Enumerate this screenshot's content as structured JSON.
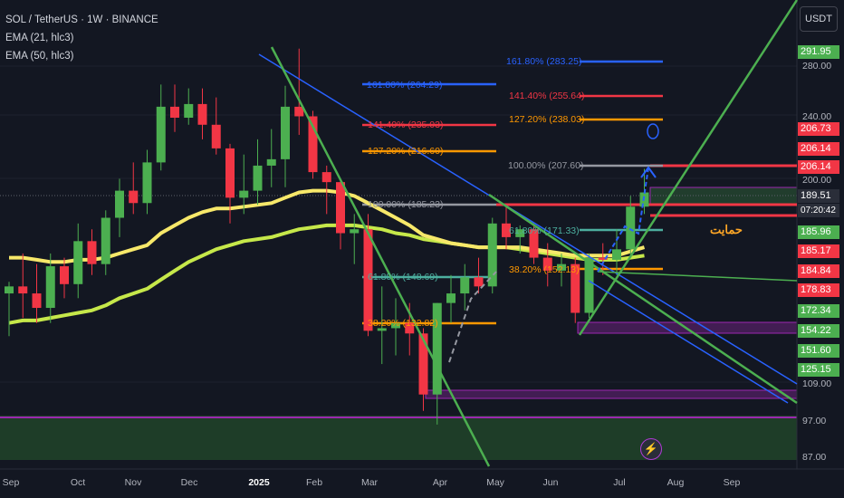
{
  "legend": {
    "symbol": "SOL / TetherUS · 1W · BINANCE",
    "ema21": "EMA (21, hlc3)",
    "ema50": "EMA (50, hlc3)"
  },
  "currency": "USDT",
  "price_axis_labels": [
    "280.00",
    "240.00",
    "200.00",
    "109.00",
    "97.00",
    "87.00"
  ],
  "price_tags": [
    {
      "text": "291.95",
      "color": "#4caf50"
    },
    {
      "text": "206.73",
      "color": "#f23645"
    },
    {
      "text": "206.14",
      "color": "#f23645"
    },
    {
      "text": "206.14",
      "color": "#f23645"
    },
    {
      "text": "189.51",
      "color": "#2a2e39"
    },
    {
      "text": "07:20:42",
      "color": "#2a2e39"
    },
    {
      "text": "185.96",
      "color": "#4caf50"
    },
    {
      "text": "185.17",
      "color": "#f23645"
    },
    {
      "text": "184.84",
      "color": "#f23645"
    },
    {
      "text": "178.83",
      "color": "#f23645"
    },
    {
      "text": "172.34",
      "color": "#4caf50"
    },
    {
      "text": "154.22",
      "color": "#4caf50"
    },
    {
      "text": "151.60",
      "color": "#4caf50"
    },
    {
      "text": "125.15",
      "color": "#4caf50"
    }
  ],
  "months": [
    "Sep",
    "Oct",
    "Nov",
    "Dec",
    "2025",
    "Feb",
    "Mar",
    "Apr",
    "May",
    "Jun",
    "Jul",
    "Aug",
    "Sep"
  ],
  "fib_labels": [
    {
      "text": "161.80% (283.25)",
      "color": "#2962ff"
    },
    {
      "text": "161.80% (264.29)",
      "color": "#2962ff"
    },
    {
      "text": "141.40% (255.64)",
      "color": "#f23645"
    },
    {
      "text": "141.40% (235.03)",
      "color": "#f23645"
    },
    {
      "text": "127.20% (238.03)",
      "color": "#ff9800"
    },
    {
      "text": "127.20% (216.60)",
      "color": "#ff9800"
    },
    {
      "text": "100.00% (207.60)",
      "color": "#9598a1"
    },
    {
      "text": "100.00% (185.23)",
      "color": "#9598a1"
    },
    {
      "text": "61.80% (171.33)",
      "color": "#4caf9f"
    },
    {
      "text": "38.20% (152.13)",
      "color": "#ff9800"
    },
    {
      "text": "61.80% (148.69)",
      "color": "#4caf9f"
    },
    {
      "text": "38.20% (132.82)",
      "color": "#ff9800"
    }
  ],
  "support_label": "حمایت",
  "chart_data": {
    "type": "candlestick",
    "symbol": "SOL / TetherUS",
    "interval": "1W",
    "exchange": "BINANCE",
    "currency": "USDT",
    "y_scale": "log",
    "candles": [
      {
        "o": 142,
        "h": 147,
        "l": 125,
        "c": 145
      },
      {
        "o": 145,
        "h": 160,
        "l": 132,
        "c": 142
      },
      {
        "o": 142,
        "h": 155,
        "l": 130,
        "c": 136
      },
      {
        "o": 136,
        "h": 160,
        "l": 130,
        "c": 154
      },
      {
        "o": 154,
        "h": 158,
        "l": 140,
        "c": 146
      },
      {
        "o": 146,
        "h": 175,
        "l": 140,
        "c": 166
      },
      {
        "o": 166,
        "h": 172,
        "l": 150,
        "c": 155
      },
      {
        "o": 155,
        "h": 182,
        "l": 150,
        "c": 178
      },
      {
        "o": 178,
        "h": 200,
        "l": 168,
        "c": 193
      },
      {
        "o": 193,
        "h": 210,
        "l": 180,
        "c": 186
      },
      {
        "o": 186,
        "h": 218,
        "l": 180,
        "c": 210
      },
      {
        "o": 210,
        "h": 265,
        "l": 205,
        "c": 248
      },
      {
        "o": 248,
        "h": 265,
        "l": 230,
        "c": 240
      },
      {
        "o": 240,
        "h": 262,
        "l": 235,
        "c": 250
      },
      {
        "o": 250,
        "h": 262,
        "l": 225,
        "c": 235
      },
      {
        "o": 235,
        "h": 255,
        "l": 215,
        "c": 219
      },
      {
        "o": 219,
        "h": 222,
        "l": 175,
        "c": 189
      },
      {
        "o": 189,
        "h": 215,
        "l": 180,
        "c": 193
      },
      {
        "o": 193,
        "h": 225,
        "l": 185,
        "c": 208
      },
      {
        "o": 208,
        "h": 232,
        "l": 195,
        "c": 212
      },
      {
        "o": 212,
        "h": 264,
        "l": 195,
        "c": 248
      },
      {
        "o": 248,
        "h": 295,
        "l": 228,
        "c": 241
      },
      {
        "o": 241,
        "h": 245,
        "l": 200,
        "c": 204
      },
      {
        "o": 204,
        "h": 208,
        "l": 180,
        "c": 198
      },
      {
        "o": 198,
        "h": 200,
        "l": 162,
        "c": 170
      },
      {
        "o": 170,
        "h": 180,
        "l": 155,
        "c": 172
      },
      {
        "o": 172,
        "h": 180,
        "l": 125,
        "c": 127
      },
      {
        "o": 127,
        "h": 145,
        "l": 115,
        "c": 128
      },
      {
        "o": 128,
        "h": 140,
        "l": 118,
        "c": 130
      },
      {
        "o": 130,
        "h": 138,
        "l": 118,
        "c": 126
      },
      {
        "o": 126,
        "h": 128,
        "l": 100,
        "c": 105
      },
      {
        "o": 105,
        "h": 138,
        "l": 96,
        "c": 138
      },
      {
        "o": 138,
        "h": 150,
        "l": 130,
        "c": 142
      },
      {
        "o": 142,
        "h": 155,
        "l": 135,
        "c": 149
      },
      {
        "o": 149,
        "h": 158,
        "l": 142,
        "c": 145
      },
      {
        "o": 145,
        "h": 178,
        "l": 142,
        "c": 175
      },
      {
        "o": 175,
        "h": 185,
        "l": 162,
        "c": 168
      },
      {
        "o": 168,
        "h": 174,
        "l": 160,
        "c": 172
      },
      {
        "o": 172,
        "h": 175,
        "l": 155,
        "c": 158
      },
      {
        "o": 158,
        "h": 165,
        "l": 145,
        "c": 152
      },
      {
        "o": 152,
        "h": 160,
        "l": 145,
        "c": 155
      },
      {
        "o": 155,
        "h": 158,
        "l": 130,
        "c": 134
      },
      {
        "o": 134,
        "h": 160,
        "l": 132,
        "c": 158
      },
      {
        "o": 158,
        "h": 165,
        "l": 150,
        "c": 157
      },
      {
        "o": 157,
        "h": 172,
        "l": 150,
        "c": 162
      },
      {
        "o": 162,
        "h": 190,
        "l": 158,
        "c": 184
      },
      {
        "o": 184,
        "h": 206,
        "l": 180,
        "c": 192
      }
    ],
    "ema21": [
      158,
      158,
      157,
      156,
      156,
      157,
      157,
      158,
      160,
      162,
      164,
      170,
      174,
      178,
      181,
      183,
      183,
      184,
      185,
      186,
      189,
      192,
      193,
      193,
      192,
      190,
      186,
      182,
      178,
      174,
      169,
      167,
      165,
      164,
      163,
      163,
      163,
      163,
      162,
      161,
      160,
      159,
      159,
      159,
      159,
      161,
      163
    ],
    "ema50": [
      130,
      131,
      131,
      132,
      133,
      134,
      135,
      137,
      140,
      142,
      144,
      148,
      152,
      156,
      159,
      162,
      164,
      166,
      167,
      168,
      170,
      172,
      173,
      174,
      174,
      174,
      173,
      172,
      170,
      169,
      167,
      166,
      165,
      164,
      163,
      163,
      163,
      162,
      161,
      160,
      159,
      158,
      157,
      157,
      157,
      158,
      159
    ],
    "levels": [
      291.95,
      206.73,
      206.14,
      189.51,
      185.96,
      185.17,
      184.84,
      178.83,
      172.34,
      154.22,
      151.6,
      125.15
    ]
  }
}
